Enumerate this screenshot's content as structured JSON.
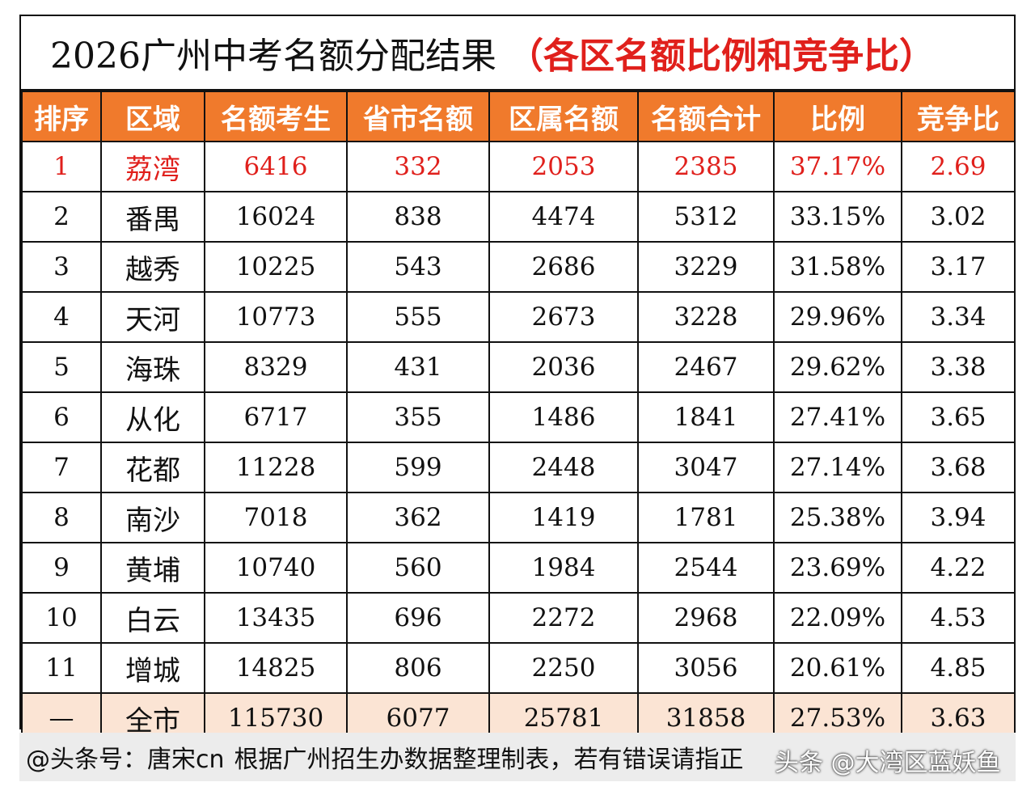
{
  "title": {
    "main": "2026广州中考名额分配结果",
    "sub": "（各区名额比例和竞争比）"
  },
  "table": {
    "headers": [
      "排序",
      "区域",
      "名额考生",
      "省市名额",
      "区属名额",
      "名额合计",
      "比例",
      "竞争比"
    ],
    "rows": [
      [
        "1",
        "荔湾",
        "6416",
        "332",
        "2053",
        "2385",
        "37.17%",
        "2.69"
      ],
      [
        "2",
        "番禺",
        "16024",
        "838",
        "4474",
        "5312",
        "33.15%",
        "3.02"
      ],
      [
        "3",
        "越秀",
        "10225",
        "543",
        "2686",
        "3229",
        "31.58%",
        "3.17"
      ],
      [
        "4",
        "天河",
        "10773",
        "555",
        "2673",
        "3228",
        "29.96%",
        "3.34"
      ],
      [
        "5",
        "海珠",
        "8329",
        "431",
        "2036",
        "2467",
        "29.62%",
        "3.38"
      ],
      [
        "6",
        "从化",
        "6717",
        "355",
        "1486",
        "1841",
        "27.41%",
        "3.65"
      ],
      [
        "7",
        "花都",
        "11228",
        "599",
        "2448",
        "3047",
        "27.14%",
        "3.68"
      ],
      [
        "8",
        "南沙",
        "7018",
        "362",
        "1419",
        "1781",
        "25.38%",
        "3.94"
      ],
      [
        "9",
        "黄埔",
        "10740",
        "560",
        "1984",
        "2544",
        "23.69%",
        "4.22"
      ],
      [
        "10",
        "白云",
        "13435",
        "696",
        "2272",
        "2968",
        "22.09%",
        "4.53"
      ],
      [
        "11",
        "增城",
        "14825",
        "806",
        "2250",
        "3056",
        "20.61%",
        "4.85"
      ]
    ],
    "total": [
      "—",
      "全市",
      "115730",
      "6077",
      "25781",
      "31858",
      "27.53%",
      "3.63"
    ]
  },
  "footer": {
    "handle": "@头条号：唐宋cn",
    "credit": "根据广州招生办数据整理制表，若有错误请指正"
  },
  "watermark": "头条 @大湾区蓝妖鱼",
  "colors": {
    "header_bg": "#f07a2c",
    "highlight": "#e0201c",
    "total_bg": "#fbe4d4"
  }
}
